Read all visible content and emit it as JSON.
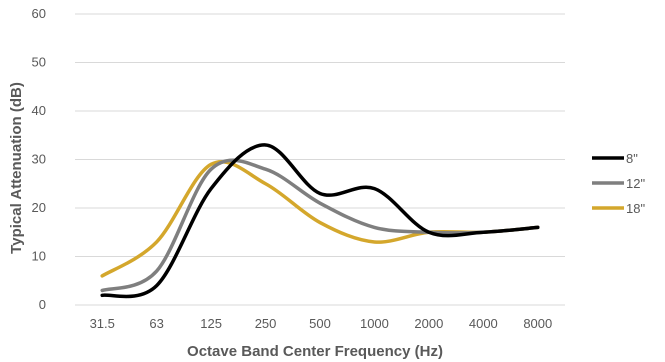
{
  "chart_data": {
    "type": "line",
    "title": "",
    "xlabel": "Octave Band Center Frequency (Hz)",
    "ylabel": "Typical Attenuation (dB)",
    "categories": [
      "31.5",
      "63",
      "125",
      "250",
      "500",
      "1000",
      "2000",
      "4000",
      "8000"
    ],
    "ylim": [
      0,
      60
    ],
    "yticks": [
      "0",
      "10",
      "20",
      "30",
      "40",
      "50",
      "60"
    ],
    "grid": "horizontal",
    "smooth": true,
    "legend_position": "right",
    "series": [
      {
        "name": "8\"",
        "color": "#000000",
        "values": [
          2,
          4,
          24,
          33,
          23,
          24,
          15,
          15,
          16
        ]
      },
      {
        "name": "12\"",
        "color": "#7f7f7f",
        "values": [
          3,
          7,
          28,
          28,
          21,
          16,
          15,
          15,
          16
        ]
      },
      {
        "name": "18\"",
        "color": "#d4a72c",
        "values": [
          6,
          13,
          29,
          25,
          17,
          13,
          15,
          15,
          16
        ]
      }
    ]
  }
}
